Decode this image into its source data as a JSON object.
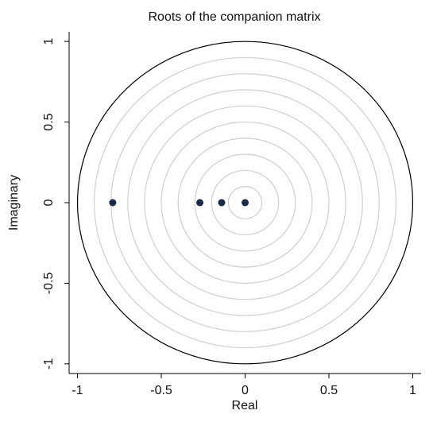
{
  "chart_data": {
    "type": "scatter",
    "title": "Roots of the companion matrix",
    "x_label": "Real",
    "y_label": "Imaginary",
    "x": [
      -0.79,
      -0.27,
      -0.14,
      0
    ],
    "values": [
      0,
      0,
      0,
      0
    ],
    "color": "#1a2a48",
    "xlim": [
      -1.05,
      1.05
    ],
    "ylim": [
      -1.06,
      1.06
    ],
    "xticks": [
      -1,
      -0.5,
      0,
      0.5,
      1
    ],
    "yticks": [
      -1,
      -0.5,
      0,
      0.5,
      1
    ],
    "grid_radii": [
      0.1,
      0.2,
      0.3,
      0.4,
      0.5,
      0.6,
      0.7,
      0.8,
      0.9
    ],
    "grid_color": "#cfcfcf",
    "unit_circle": true
  }
}
